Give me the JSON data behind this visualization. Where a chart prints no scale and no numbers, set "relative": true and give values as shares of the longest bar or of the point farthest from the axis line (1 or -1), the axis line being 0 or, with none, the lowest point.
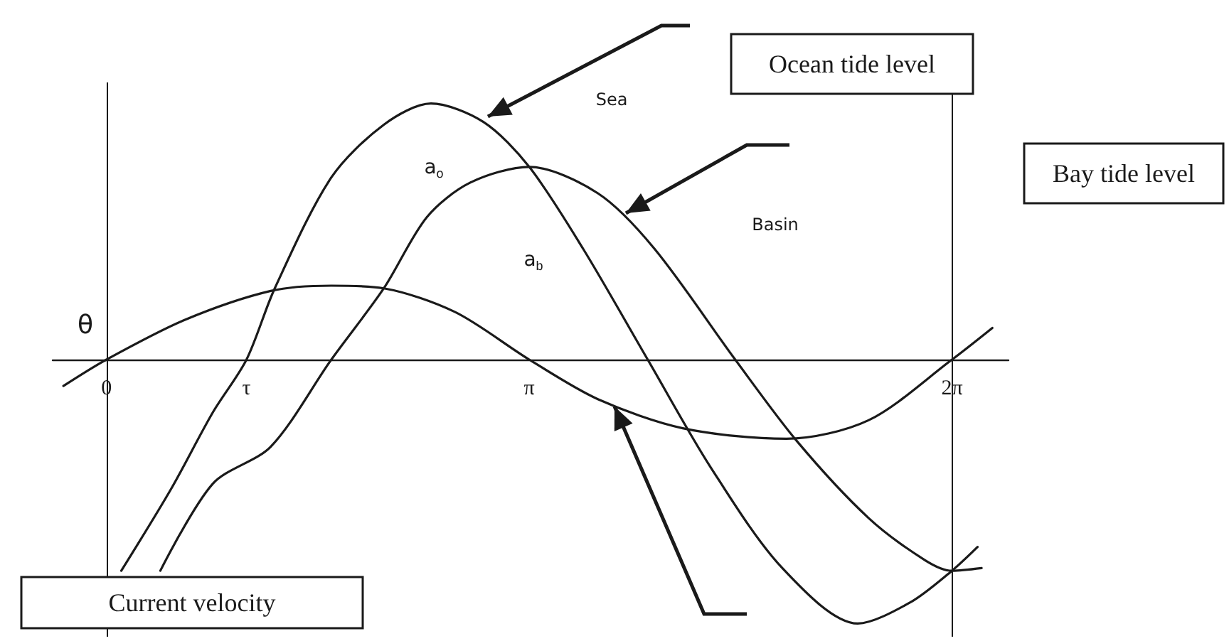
{
  "chart_data": {
    "type": "line",
    "relative": true,
    "legend": false,
    "grid": false,
    "marker": "none",
    "line_style": "solid",
    "xlim": [
      -0.4,
      6.7
    ],
    "xticks": [
      0,
      {
        "value": 1.04,
        "label": "τ"
      },
      {
        "value": 3.14,
        "label": "π"
      },
      {
        "value": 6.28,
        "label": "2π"
      }
    ],
    "ref_lines": [
      {
        "axis": "x",
        "value": 0
      },
      {
        "axis": "x",
        "value": 6.28
      }
    ],
    "series": [
      {
        "name": "Ocean tide level",
        "color": "#1a1a1a",
        "x": [
          0.11,
          0.48,
          0.79,
          1.04,
          1.25,
          1.67,
          2.06,
          2.41,
          2.8,
          3.14,
          3.54,
          4.02,
          4.49,
          5.02,
          5.58,
          5.97,
          6.28,
          6.47
        ],
        "values": [
          -0.8,
          -0.49,
          -0.2,
          0,
          0.27,
          0.69,
          0.89,
          0.97,
          0.9,
          0.73,
          0.42,
          0,
          -0.41,
          -0.79,
          -1.0,
          -0.92,
          -0.8,
          -0.71
        ]
      },
      {
        "name": "Bay tide level",
        "color": "#1a1a1a",
        "x": [
          0.4,
          0.79,
          1.22,
          1.67,
          2.06,
          2.38,
          2.7,
          3.14,
          3.65,
          4.07,
          4.67,
          5.13,
          5.66,
          6.08,
          6.28,
          6.5
        ],
        "values": [
          -0.8,
          -0.47,
          -0.33,
          0,
          0.27,
          0.54,
          0.67,
          0.73,
          0.63,
          0.42,
          0,
          -0.31,
          -0.6,
          -0.76,
          -0.8,
          -0.79
        ]
      },
      {
        "name": "Current velocity",
        "color": "#1a1a1a",
        "x": [
          -0.32,
          0,
          0.58,
          1.22,
          1.67,
          2.06,
          2.59,
          3.14,
          3.65,
          4.28,
          5.05,
          5.66,
          6.28,
          6.58
        ],
        "values": [
          -0.1,
          0,
          0.15,
          0.26,
          0.28,
          0.27,
          0.18,
          0,
          -0.15,
          -0.26,
          -0.3,
          -0.23,
          0,
          0.12
        ]
      }
    ],
    "annotations": [
      "Sea",
      "Basin",
      "θ",
      "a$_{o}$",
      "a$_{b}$"
    ]
  }
}
